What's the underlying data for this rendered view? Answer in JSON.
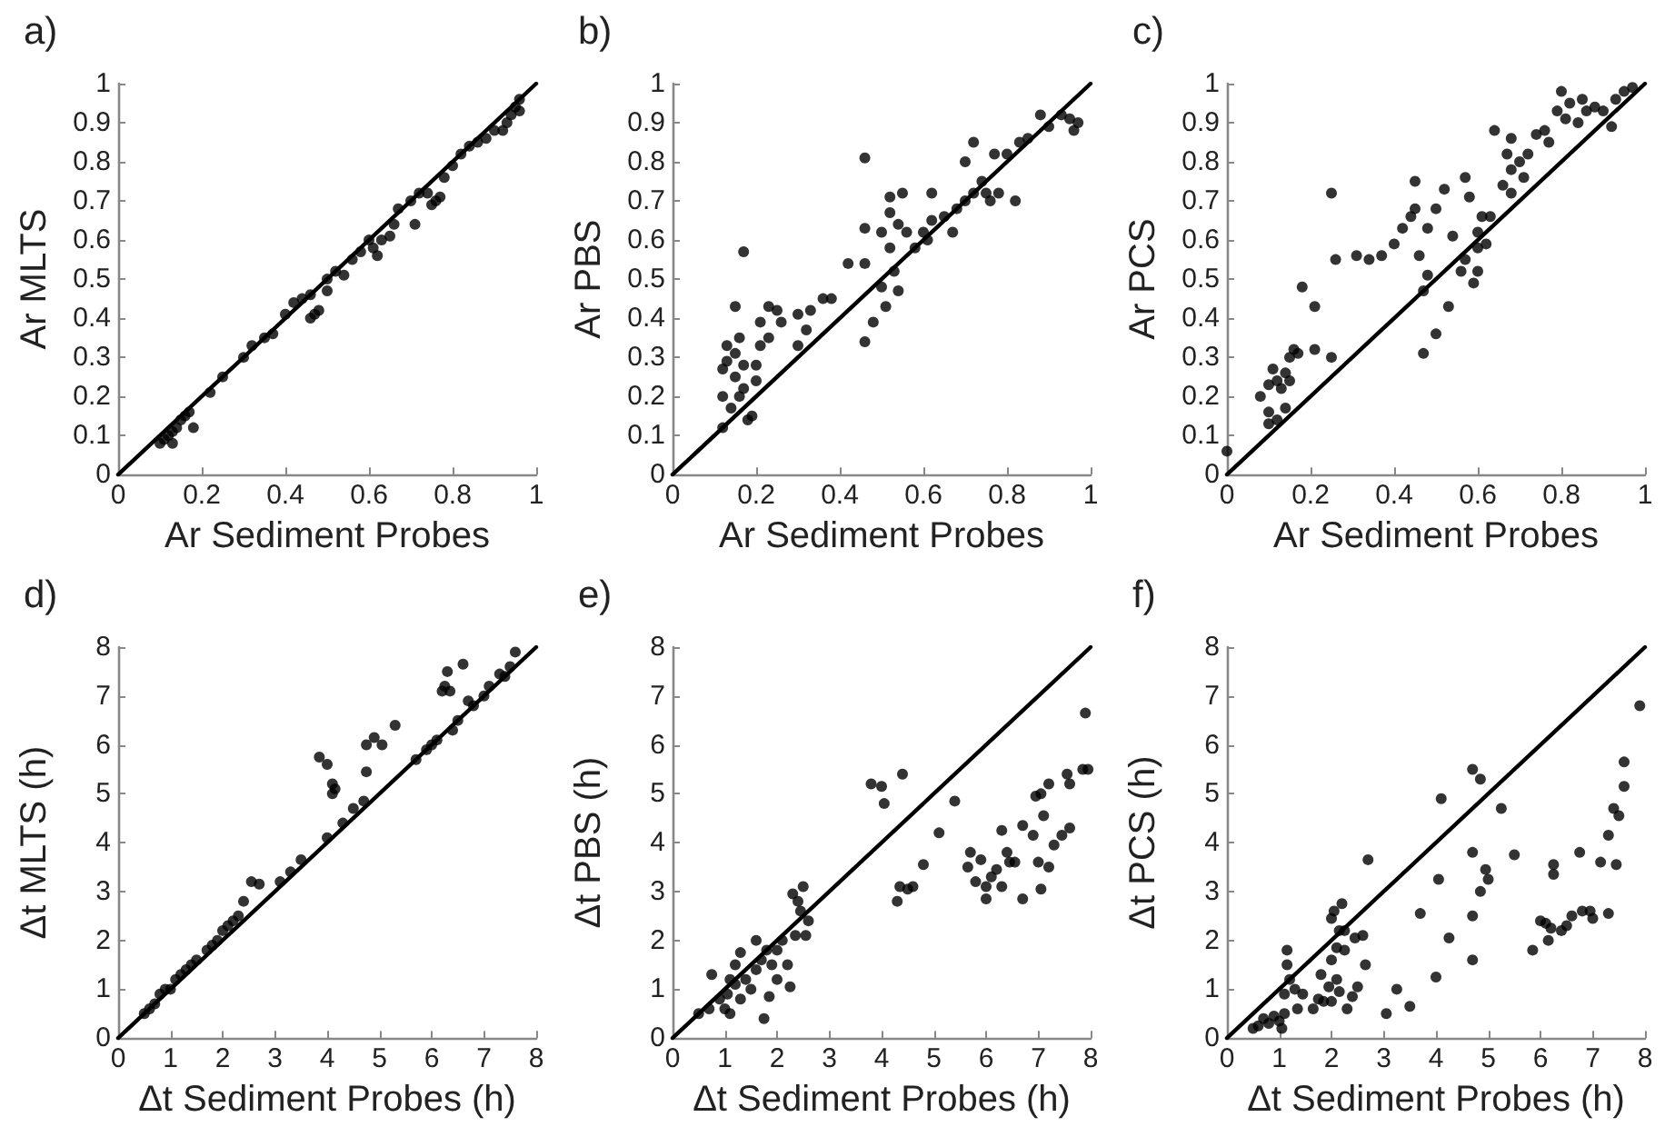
{
  "chart_data": [
    {
      "type": "scatter",
      "title": "a)",
      "xlabel": "Ar Sediment Probes",
      "ylabel": "Ar MLTS",
      "xlim": [
        0,
        1
      ],
      "ylim": [
        0,
        1
      ],
      "xticks": [
        0,
        0.2,
        0.4,
        0.6,
        0.8,
        1
      ],
      "yticks": [
        0,
        0.1,
        0.2,
        0.3,
        0.4,
        0.5,
        0.6,
        0.7,
        0.8,
        0.9,
        1
      ],
      "marker": "circle",
      "series": [
        {
          "color": "#000000",
          "x": [
            0.1,
            0.11,
            0.12,
            0.13,
            0.14,
            0.15,
            0.16,
            0.17,
            0.18,
            0.13,
            0.22,
            0.25,
            0.3,
            0.32,
            0.35,
            0.37,
            0.4,
            0.42,
            0.44,
            0.46,
            0.46,
            0.47,
            0.48,
            0.5,
            0.5,
            0.52,
            0.54,
            0.56,
            0.58,
            0.6,
            0.61,
            0.62,
            0.63,
            0.65,
            0.66,
            0.67,
            0.7,
            0.71,
            0.72,
            0.74,
            0.75,
            0.76,
            0.77,
            0.78,
            0.8,
            0.82,
            0.84,
            0.86,
            0.88,
            0.9,
            0.92,
            0.93,
            0.94,
            0.95,
            0.96,
            0.96
          ],
          "values": [
            0.08,
            0.09,
            0.1,
            0.11,
            0.12,
            0.14,
            0.15,
            0.16,
            0.12,
            0.08,
            0.21,
            0.25,
            0.3,
            0.33,
            0.35,
            0.36,
            0.41,
            0.44,
            0.45,
            0.46,
            0.4,
            0.41,
            0.42,
            0.5,
            0.47,
            0.52,
            0.51,
            0.55,
            0.57,
            0.6,
            0.58,
            0.56,
            0.6,
            0.61,
            0.64,
            0.68,
            0.7,
            0.64,
            0.72,
            0.72,
            0.69,
            0.7,
            0.71,
            0.76,
            0.79,
            0.82,
            0.84,
            0.85,
            0.86,
            0.88,
            0.88,
            0.9,
            0.92,
            0.94,
            0.93,
            0.96
          ]
        },
        {
          "type": "line",
          "marker": "none",
          "color": "#000000",
          "x": [
            0,
            1
          ],
          "values": [
            0,
            1
          ]
        }
      ]
    },
    {
      "type": "scatter",
      "title": "b)",
      "xlabel": "Ar Sediment Probes",
      "ylabel": "Ar PBS",
      "xlim": [
        0,
        1
      ],
      "ylim": [
        0,
        1
      ],
      "xticks": [
        0,
        0.2,
        0.4,
        0.6,
        0.8,
        1
      ],
      "yticks": [
        0,
        0.1,
        0.2,
        0.3,
        0.4,
        0.5,
        0.6,
        0.7,
        0.8,
        0.9,
        1
      ],
      "marker": "circle",
      "series": [
        {
          "color": "#000000",
          "x": [
            0.12,
            0.12,
            0.12,
            0.13,
            0.13,
            0.14,
            0.15,
            0.15,
            0.15,
            0.16,
            0.16,
            0.17,
            0.17,
            0.17,
            0.18,
            0.19,
            0.2,
            0.2,
            0.21,
            0.21,
            0.23,
            0.23,
            0.25,
            0.26,
            0.3,
            0.3,
            0.32,
            0.33,
            0.36,
            0.38,
            0.42,
            0.46,
            0.46,
            0.46,
            0.46,
            0.48,
            0.5,
            0.51,
            0.5,
            0.52,
            0.52,
            0.52,
            0.53,
            0.54,
            0.54,
            0.55,
            0.56,
            0.58,
            0.6,
            0.61,
            0.62,
            0.62,
            0.65,
            0.67,
            0.68,
            0.7,
            0.7,
            0.72,
            0.72,
            0.74,
            0.75,
            0.76,
            0.77,
            0.78,
            0.8,
            0.82,
            0.83,
            0.85,
            0.88,
            0.9,
            0.93,
            0.95,
            0.96,
            0.97
          ],
          "values": [
            0.12,
            0.2,
            0.27,
            0.29,
            0.33,
            0.17,
            0.25,
            0.31,
            0.43,
            0.2,
            0.35,
            0.57,
            0.28,
            0.22,
            0.14,
            0.15,
            0.24,
            0.28,
            0.33,
            0.39,
            0.35,
            0.43,
            0.42,
            0.39,
            0.33,
            0.41,
            0.37,
            0.42,
            0.45,
            0.45,
            0.54,
            0.34,
            0.54,
            0.63,
            0.81,
            0.39,
            0.48,
            0.43,
            0.62,
            0.58,
            0.67,
            0.71,
            0.52,
            0.47,
            0.64,
            0.72,
            0.62,
            0.58,
            0.62,
            0.6,
            0.65,
            0.72,
            0.66,
            0.62,
            0.68,
            0.7,
            0.8,
            0.85,
            0.72,
            0.75,
            0.72,
            0.7,
            0.82,
            0.72,
            0.82,
            0.7,
            0.85,
            0.86,
            0.92,
            0.89,
            0.92,
            0.91,
            0.88,
            0.9
          ]
        },
        {
          "type": "line",
          "marker": "none",
          "color": "#000000",
          "x": [
            0,
            1
          ],
          "values": [
            0,
            1
          ]
        }
      ]
    },
    {
      "type": "scatter",
      "title": "c)",
      "xlabel": "Ar Sediment Probes",
      "ylabel": "Ar PCS",
      "xlim": [
        0,
        1
      ],
      "ylim": [
        0,
        1
      ],
      "xticks": [
        0,
        0.2,
        0.4,
        0.6,
        0.8,
        1
      ],
      "yticks": [
        0,
        0.1,
        0.2,
        0.3,
        0.4,
        0.5,
        0.6,
        0.7,
        0.8,
        0.9,
        1
      ],
      "marker": "circle",
      "series": [
        {
          "color": "#000000",
          "x": [
            0,
            0.08,
            0.1,
            0.1,
            0.1,
            0.11,
            0.12,
            0.12,
            0.13,
            0.14,
            0.14,
            0.15,
            0.15,
            0.16,
            0.17,
            0.18,
            0.21,
            0.21,
            0.25,
            0.25,
            0.26,
            0.31,
            0.34,
            0.37,
            0.4,
            0.42,
            0.44,
            0.45,
            0.45,
            0.46,
            0.47,
            0.47,
            0.48,
            0.48,
            0.5,
            0.5,
            0.52,
            0.53,
            0.54,
            0.56,
            0.57,
            0.57,
            0.58,
            0.59,
            0.6,
            0.6,
            0.6,
            0.61,
            0.62,
            0.63,
            0.64,
            0.66,
            0.67,
            0.68,
            0.68,
            0.68,
            0.7,
            0.71,
            0.72,
            0.74,
            0.76,
            0.77,
            0.79,
            0.8,
            0.81,
            0.82,
            0.84,
            0.85,
            0.86,
            0.88,
            0.9,
            0.92,
            0.93,
            0.95,
            0.97
          ],
          "values": [
            0.06,
            0.2,
            0.13,
            0.16,
            0.23,
            0.27,
            0.14,
            0.24,
            0.22,
            0.26,
            0.17,
            0.24,
            0.3,
            0.32,
            0.31,
            0.48,
            0.43,
            0.32,
            0.3,
            0.72,
            0.55,
            0.56,
            0.55,
            0.56,
            0.59,
            0.63,
            0.66,
            0.68,
            0.75,
            0.56,
            0.31,
            0.47,
            0.51,
            0.63,
            0.36,
            0.68,
            0.73,
            0.43,
            0.61,
            0.52,
            0.55,
            0.76,
            0.71,
            0.49,
            0.52,
            0.58,
            0.62,
            0.66,
            0.59,
            0.66,
            0.88,
            0.74,
            0.82,
            0.78,
            0.72,
            0.86,
            0.8,
            0.76,
            0.82,
            0.87,
            0.88,
            0.85,
            0.93,
            0.98,
            0.91,
            0.95,
            0.9,
            0.96,
            0.93,
            0.94,
            0.93,
            0.89,
            0.96,
            0.98,
            0.99
          ]
        },
        {
          "type": "line",
          "marker": "none",
          "color": "#000000",
          "x": [
            0,
            1
          ],
          "values": [
            0,
            1
          ]
        }
      ]
    },
    {
      "type": "scatter",
      "title": "d)",
      "xlabel": "Δt Sediment Probes (h)",
      "ylabel": "Δt MLTS (h)",
      "xlim": [
        0,
        8
      ],
      "ylim": [
        0,
        8
      ],
      "xticks": [
        0,
        1,
        2,
        3,
        4,
        5,
        6,
        7,
        8
      ],
      "yticks": [
        0,
        1,
        2,
        3,
        4,
        5,
        6,
        7,
        8
      ],
      "marker": "circle",
      "series": [
        {
          "color": "#000000",
          "x": [
            0.5,
            0.6,
            0.7,
            0.8,
            0.9,
            1.0,
            1.1,
            1.2,
            1.3,
            1.4,
            1.5,
            1.7,
            1.8,
            1.9,
            2.0,
            2.1,
            2.2,
            2.3,
            2.4,
            2.55,
            2.7,
            3.1,
            3.3,
            3.5,
            3.85,
            4.0,
            4.0,
            4.1,
            4.1,
            4.15,
            4.3,
            4.5,
            4.7,
            4.75,
            4.75,
            4.9,
            5.05,
            5.3,
            5.7,
            5.9,
            6.0,
            6.1,
            6.2,
            6.25,
            6.3,
            6.35,
            6.4,
            6.5,
            6.6,
            6.7,
            6.8,
            7.0,
            7.1,
            7.3,
            7.4,
            7.5,
            7.6
          ],
          "values": [
            0.5,
            0.6,
            0.7,
            0.9,
            1.0,
            1.0,
            1.2,
            1.3,
            1.4,
            1.5,
            1.6,
            1.8,
            1.9,
            2.0,
            2.2,
            2.3,
            2.4,
            2.5,
            2.8,
            3.2,
            3.15,
            3.2,
            3.4,
            3.65,
            5.75,
            4.1,
            5.6,
            5.2,
            5.0,
            5.1,
            4.4,
            4.7,
            4.85,
            5.45,
            6.0,
            6.15,
            6.0,
            6.4,
            5.7,
            5.9,
            6.0,
            6.1,
            7.1,
            7.2,
            7.5,
            7.1,
            6.3,
            6.5,
            7.65,
            6.9,
            6.8,
            7.0,
            7.2,
            7.45,
            7.4,
            7.6,
            7.9
          ]
        },
        {
          "type": "line",
          "marker": "none",
          "color": "#000000",
          "x": [
            0,
            8
          ],
          "values": [
            0,
            8
          ]
        }
      ]
    },
    {
      "type": "scatter",
      "title": "e)",
      "xlabel": "Δt Sediment Probes (h)",
      "ylabel": "Δt PBS (h)",
      "xlim": [
        0,
        8
      ],
      "ylim": [
        0,
        8
      ],
      "xticks": [
        0,
        1,
        2,
        3,
        4,
        5,
        6,
        7,
        8
      ],
      "yticks": [
        0,
        1,
        2,
        3,
        4,
        5,
        6,
        7,
        8
      ],
      "marker": "circle",
      "series": [
        {
          "color": "#000000",
          "x": [
            0.5,
            0.7,
            0.75,
            0.9,
            1.0,
            1.05,
            1.1,
            1.1,
            1.2,
            1.2,
            1.3,
            1.3,
            1.4,
            1.5,
            1.6,
            1.6,
            1.7,
            1.75,
            1.8,
            1.85,
            1.9,
            2.0,
            2.0,
            2.1,
            2.2,
            2.25,
            2.3,
            2.35,
            2.4,
            2.45,
            2.5,
            2.55,
            2.6,
            3.8,
            4.0,
            4.05,
            4.3,
            4.35,
            4.4,
            4.5,
            4.6,
            4.8,
            5.1,
            5.4,
            5.65,
            5.7,
            5.8,
            5.9,
            6.0,
            6.0,
            6.1,
            6.2,
            6.3,
            6.3,
            6.4,
            6.45,
            6.55,
            6.7,
            6.7,
            6.9,
            6.95,
            7.0,
            7.05,
            7.05,
            7.1,
            7.2,
            7.2,
            7.3,
            7.45,
            7.55,
            7.6,
            7.6,
            7.85,
            7.9,
            7.95
          ],
          "values": [
            0.5,
            0.6,
            1.3,
            0.8,
            0.6,
            0.9,
            1.2,
            0.5,
            1.1,
            1.5,
            0.8,
            1.75,
            1.2,
            1.0,
            1.4,
            2.0,
            1.6,
            0.4,
            1.8,
            0.85,
            1.5,
            1.2,
            1.8,
            2.0,
            1.5,
            1.05,
            2.95,
            2.1,
            2.8,
            2.6,
            3.1,
            2.1,
            2.4,
            5.2,
            5.15,
            4.8,
            2.8,
            3.1,
            5.4,
            3.05,
            3.1,
            3.55,
            4.2,
            4.85,
            3.5,
            3.8,
            3.2,
            3.65,
            2.85,
            3.1,
            3.3,
            3.45,
            3.1,
            4.25,
            3.8,
            3.6,
            3.6,
            2.85,
            4.35,
            4.15,
            4.95,
            3.6,
            5.0,
            3.05,
            4.55,
            3.5,
            5.2,
            3.95,
            4.15,
            5.4,
            4.3,
            5.2,
            5.5,
            6.65,
            5.5
          ]
        },
        {
          "type": "line",
          "marker": "none",
          "color": "#000000",
          "x": [
            0,
            8
          ],
          "values": [
            0,
            8
          ]
        }
      ]
    },
    {
      "type": "scatter",
      "title": "f)",
      "xlabel": "Δt Sediment Probes (h)",
      "ylabel": "Δt PCS (h)",
      "xlim": [
        0,
        8
      ],
      "ylim": [
        0,
        8
      ],
      "xticks": [
        0,
        1,
        2,
        3,
        4,
        5,
        6,
        7,
        8
      ],
      "yticks": [
        0,
        1,
        2,
        3,
        4,
        5,
        6,
        7,
        8
      ],
      "marker": "circle",
      "series": [
        {
          "color": "#000000",
          "x": [
            0.5,
            0.6,
            0.7,
            0.8,
            0.9,
            1.0,
            1.05,
            1.1,
            1.1,
            1.15,
            1.15,
            1.2,
            1.3,
            1.35,
            1.45,
            1.65,
            1.75,
            1.8,
            1.85,
            1.95,
            2.0,
            2.0,
            2.0,
            2.05,
            2.1,
            2.1,
            2.15,
            2.15,
            2.2,
            2.25,
            2.25,
            2.3,
            2.4,
            2.45,
            2.5,
            2.6,
            2.65,
            2.7,
            3.05,
            3.25,
            3.5,
            3.7,
            4.0,
            4.05,
            4.1,
            4.25,
            4.7,
            4.7,
            4.7,
            4.7,
            4.85,
            4.85,
            4.95,
            5.0,
            5.25,
            5.5,
            5.85,
            6.0,
            6.1,
            6.15,
            6.2,
            6.25,
            6.25,
            6.4,
            6.5,
            6.6,
            6.75,
            6.8,
            6.95,
            7.0,
            7.15,
            7.3,
            7.3,
            7.4,
            7.45,
            7.5,
            7.6,
            7.6,
            7.9
          ],
          "values": [
            0.2,
            0.25,
            0.4,
            0.3,
            0.45,
            0.35,
            0.2,
            0.5,
            0.9,
            1.8,
            1.5,
            1.2,
            1.0,
            0.6,
            0.9,
            0.6,
            0.8,
            1.3,
            0.75,
            1.05,
            0.75,
            1.6,
            2.45,
            2.6,
            1.85,
            1.2,
            2.2,
            0.95,
            2.75,
            2.2,
            1.8,
            0.6,
            0.85,
            2.05,
            1.05,
            2.1,
            1.5,
            3.65,
            0.5,
            1.0,
            0.65,
            2.55,
            1.25,
            3.25,
            4.9,
            2.05,
            1.6,
            2.5,
            3.8,
            5.5,
            5.3,
            3.0,
            3.45,
            3.25,
            4.7,
            3.75,
            1.8,
            2.4,
            2.35,
            2.0,
            2.25,
            3.35,
            3.55,
            2.2,
            2.3,
            2.5,
            3.8,
            2.6,
            2.6,
            2.45,
            3.6,
            2.55,
            4.15,
            4.7,
            3.55,
            4.55,
            5.65,
            5.15,
            6.8
          ]
        },
        {
          "type": "line",
          "marker": "none",
          "color": "#000000",
          "x": [
            0,
            8
          ],
          "values": [
            0,
            8
          ]
        }
      ]
    }
  ]
}
